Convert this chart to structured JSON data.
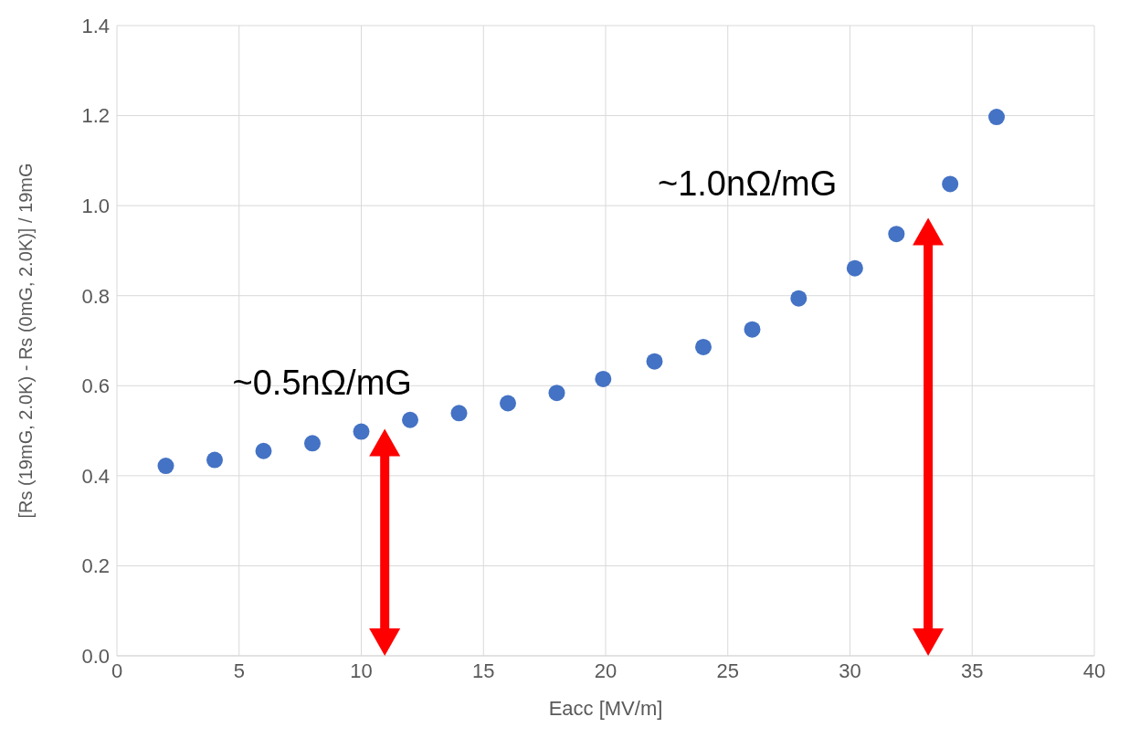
{
  "chart_data": {
    "type": "scatter",
    "xlabel": "Eacc [MV/m]",
    "ylabel": "[Rs (19mG, 2.0K) - Rs (0mG, 2.0K)] / 19mG",
    "x": [
      2,
      4,
      6,
      8,
      10,
      12,
      14,
      16,
      18,
      19.9,
      22,
      24,
      26,
      27.9,
      30.2,
      31.9,
      34.1,
      36
    ],
    "series": [
      {
        "color": "#4472c4",
        "values": [
          0.422,
          0.435,
          0.455,
          0.472,
          0.498,
          0.524,
          0.539,
          0.561,
          0.584,
          0.615,
          0.654,
          0.686,
          0.725,
          0.794,
          0.861,
          0.937,
          1.048,
          1.197
        ]
      }
    ],
    "xlim": [
      0,
      40
    ],
    "xticks": [
      0,
      5,
      10,
      15,
      20,
      25,
      30,
      35,
      40
    ],
    "ylim": [
      0,
      1.4
    ],
    "yticks": [
      {
        "value": 0,
        "label": "0.0"
      },
      {
        "value": 0.2,
        "label": "0.2"
      },
      {
        "value": 0.4,
        "label": "0.4"
      },
      {
        "value": 0.6,
        "label": "0.6"
      },
      {
        "value": 0.8,
        "label": "0.8"
      },
      {
        "value": 1,
        "label": "1.0"
      },
      {
        "value": 1.2,
        "label": "1.2"
      },
      {
        "value": 1.4,
        "label": "1.4"
      }
    ],
    "grid": true,
    "marker": "circle",
    "legend": false,
    "annotations": [
      "~0.5nΩ/mG",
      "~1.0nΩ/mG"
    ]
  }
}
